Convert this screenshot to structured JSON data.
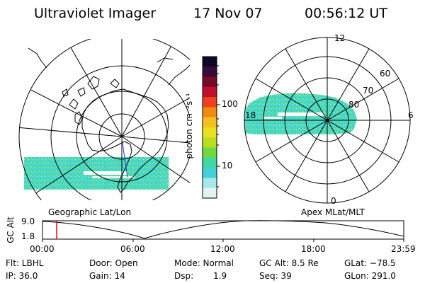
{
  "header": {
    "instrument": "Ultraviolet Imager",
    "date": "17 Nov 07",
    "time": "00:56:12 UT"
  },
  "left_panel": {
    "caption": "Geographic Lat/Lon"
  },
  "right_panel": {
    "caption": "Apex MLat/MLT",
    "lat_labels": [
      "60",
      "70",
      "80"
    ],
    "mlt_labels": [
      "12",
      "18",
      "6",
      "0"
    ]
  },
  "colorbar": {
    "label": "photon cm⁻²s⁻¹",
    "tick_labels": [
      "100",
      "10"
    ],
    "colors": [
      "#0a0a28",
      "#3a0a3a",
      "#7a0a2a",
      "#c0102a",
      "#f04020",
      "#f08a10",
      "#f4c020",
      "#e8e020",
      "#b8e020",
      "#70d840",
      "#40d8a0",
      "#40d0d8",
      "#a8e8e8",
      "#e4f4f4"
    ]
  },
  "altitude_plot": {
    "ylabel": "GC Alt",
    "y_ticks": [
      "9.0",
      "1.8"
    ],
    "x_ticks": [
      "00:00",
      "06:00",
      "12:00",
      "18:00",
      "23:59"
    ],
    "cursor_color": "#ff0000"
  },
  "info": {
    "flt": "Flt: LBHL",
    "ip": "IP: 36.0",
    "door": "Door: Open",
    "gain": "Gain: 14",
    "mode": "Mode: Normal",
    "dsp_label": "Dsp:",
    "dsp_value": "1.9",
    "gc_alt": "GC Alt: 8.5 Re",
    "seq": "Seq: 39",
    "glat": "GLat: −78.5",
    "glon": "GLon: 291.0"
  }
}
